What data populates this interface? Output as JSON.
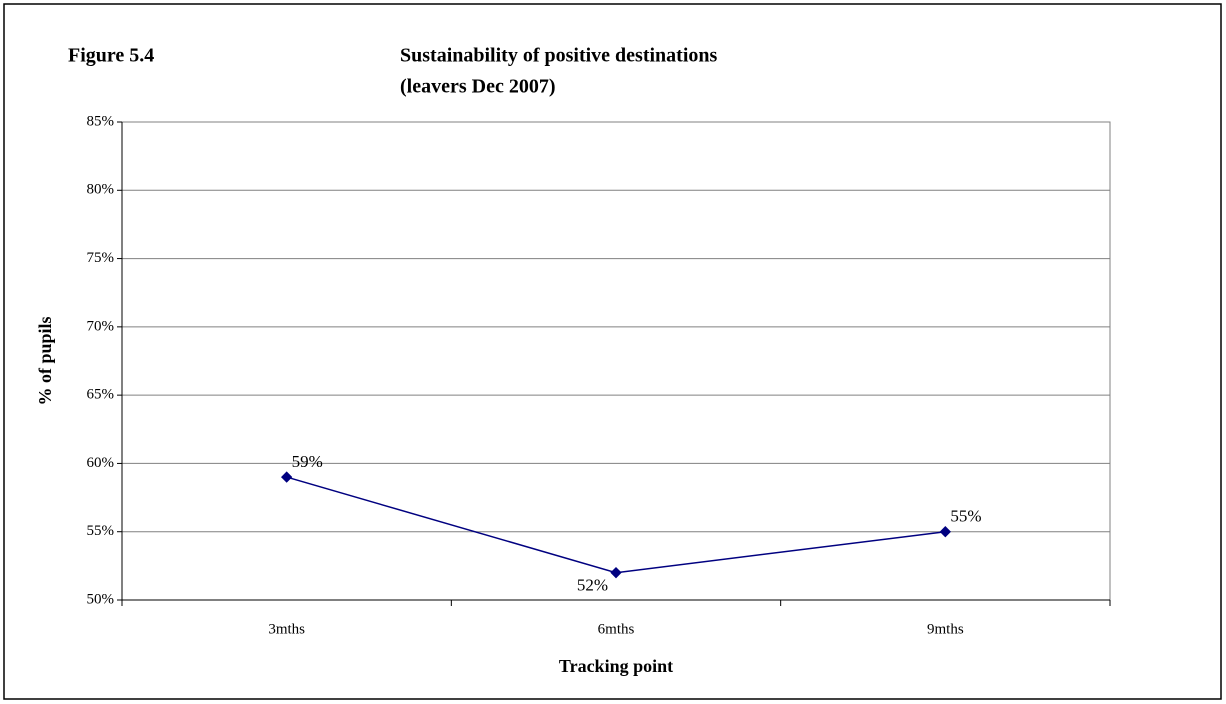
{
  "chart_data": {
    "type": "line",
    "figure_label": "Figure 5.4",
    "title": [
      "Sustainability of positive destinations",
      "(leavers Dec 2007)"
    ],
    "x_label": "Tracking point",
    "y_label": "% of pupils",
    "categories": [
      "3mths",
      "6mths",
      "9mths"
    ],
    "series": [
      {
        "name": "Sustainability",
        "color": "#000080",
        "values": [
          59,
          52,
          55
        ],
        "value_labels": [
          "59%",
          "52%",
          "55%"
        ]
      }
    ],
    "ylim": [
      50,
      85
    ],
    "yticks": [
      {
        "value": 50,
        "label": "50%"
      },
      {
        "value": 55,
        "label": "55%"
      },
      {
        "value": 60,
        "label": "60%"
      },
      {
        "value": 65,
        "label": "65%"
      },
      {
        "value": 70,
        "label": "70%"
      },
      {
        "value": 75,
        "label": "75%"
      },
      {
        "value": 80,
        "label": "80%"
      },
      {
        "value": 85,
        "label": "85%"
      }
    ],
    "grid": true
  }
}
